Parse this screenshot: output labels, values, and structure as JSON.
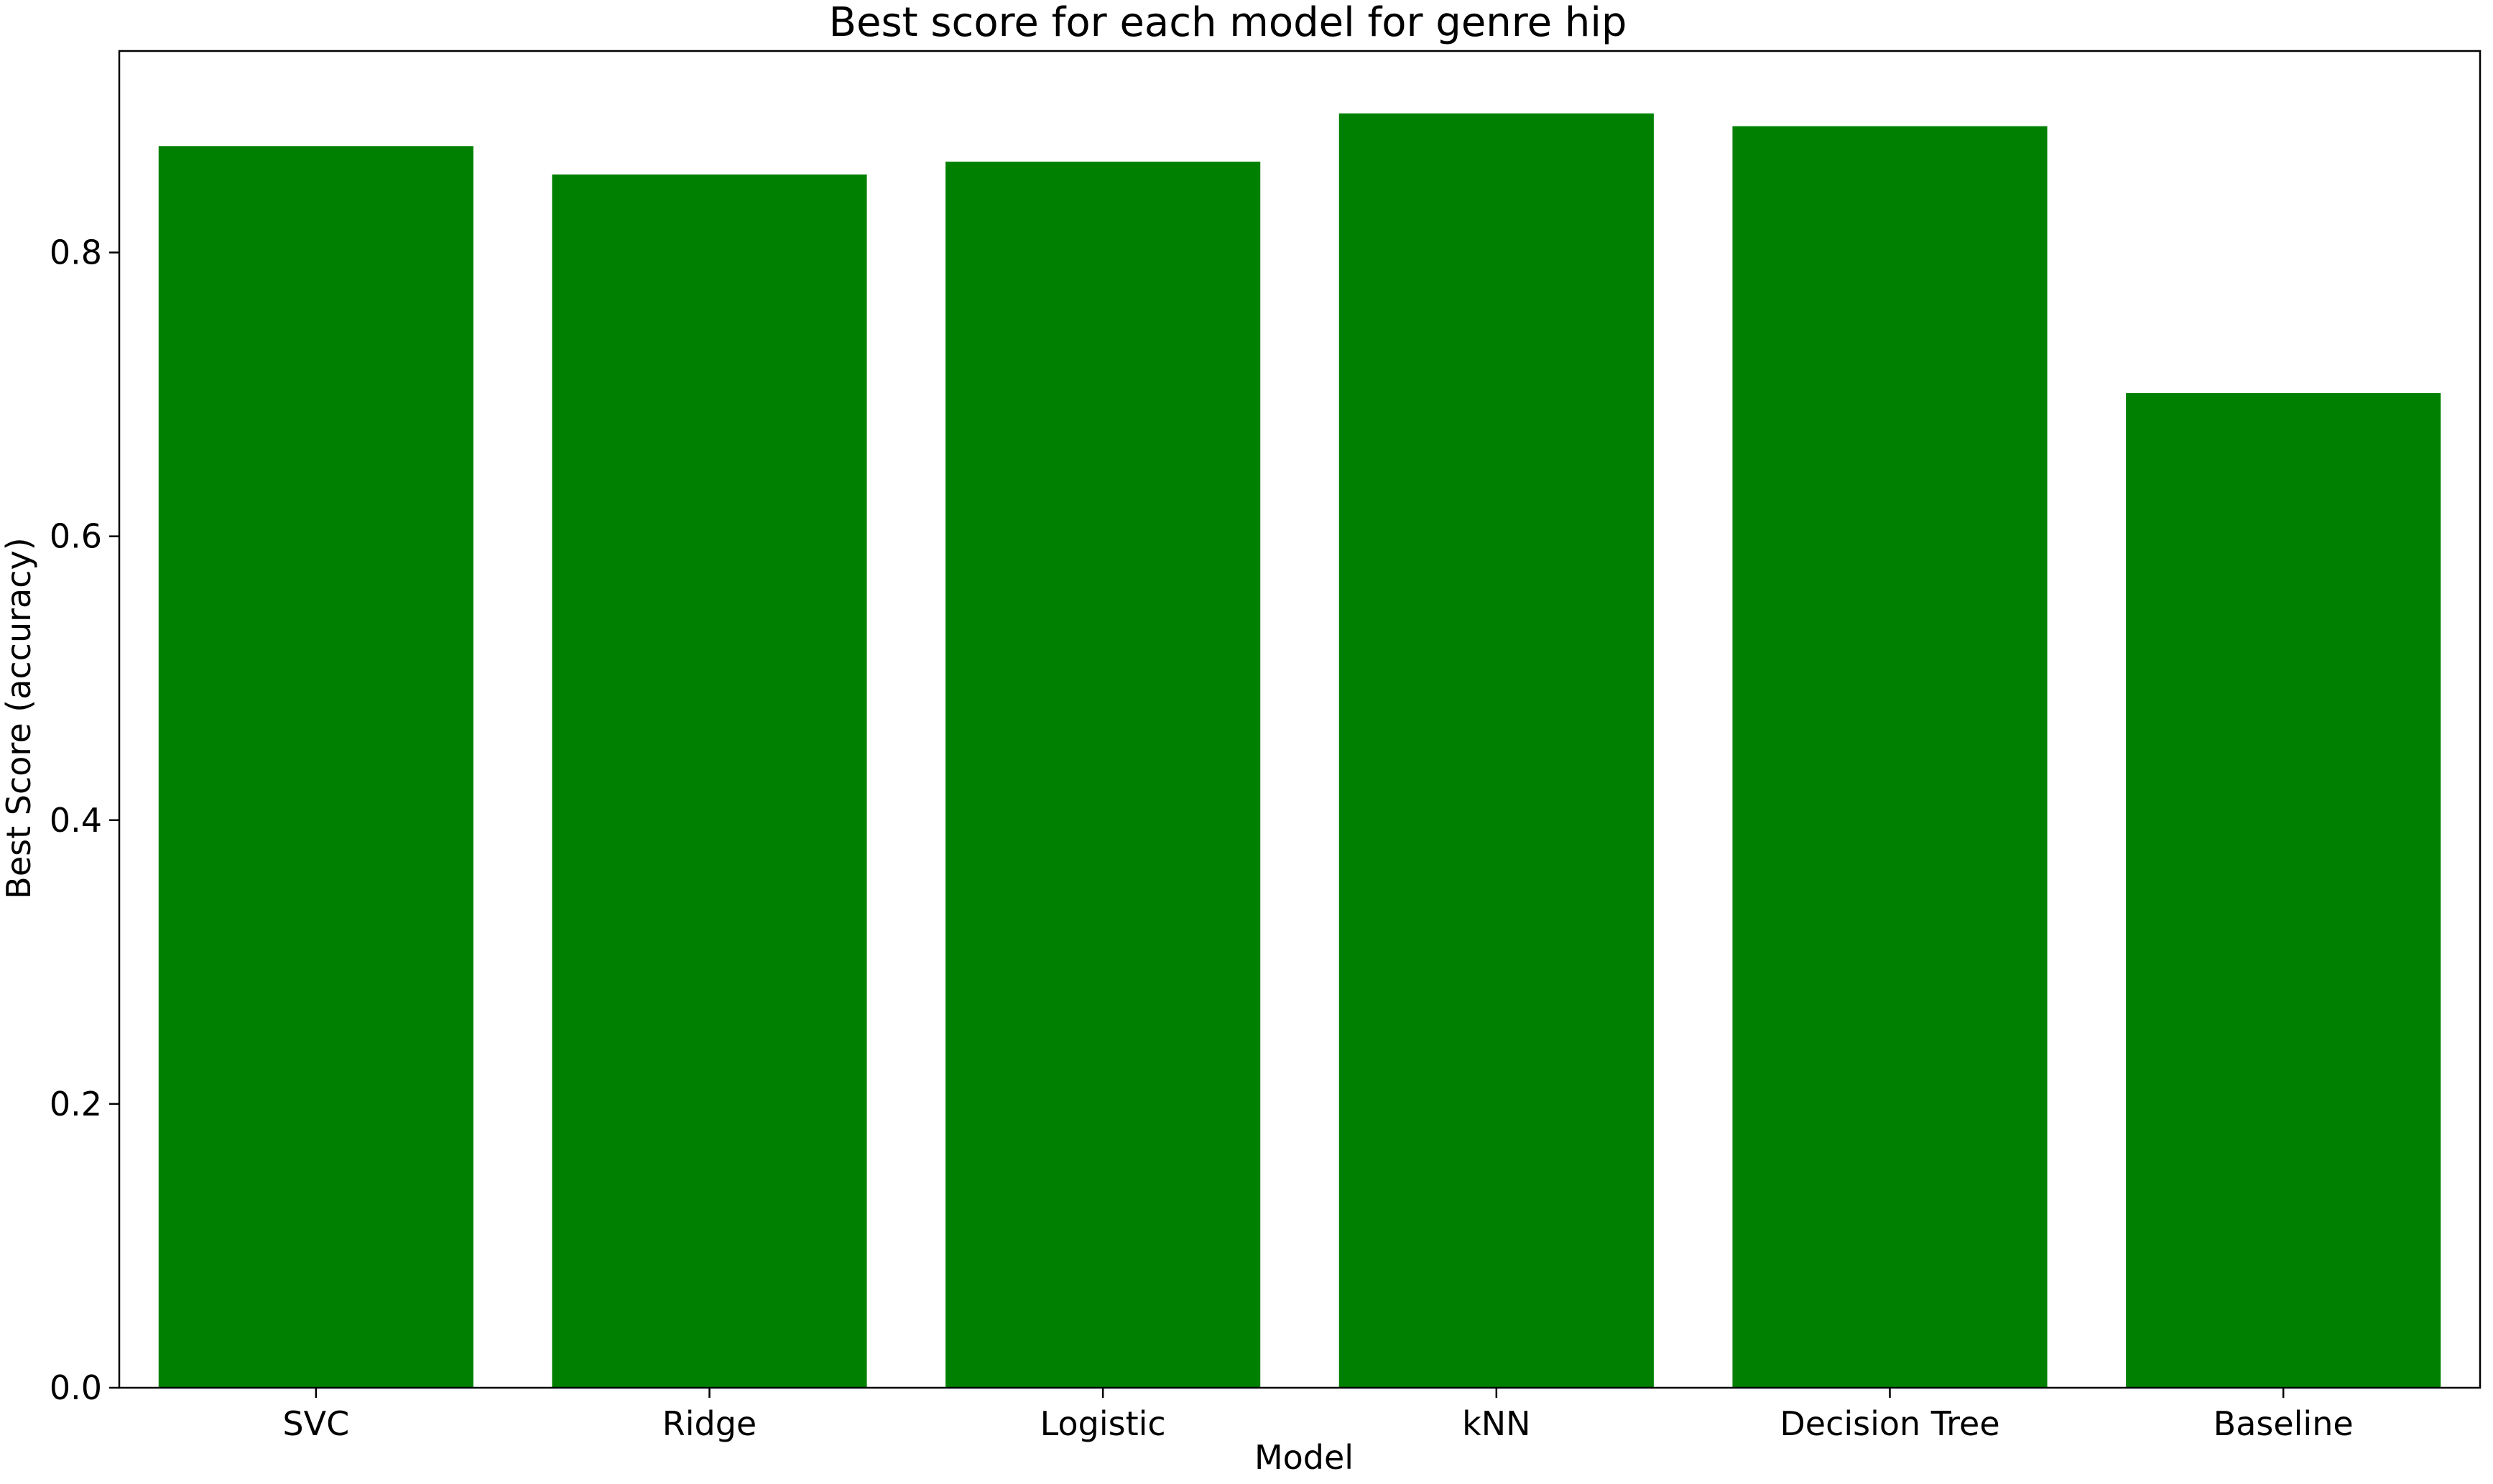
{
  "chart_data": {
    "type": "bar",
    "title": "Best score for each model for genre hip",
    "xlabel": "Model",
    "ylabel": "Best Score (accuracy)",
    "categories": [
      "SVC",
      "Ridge",
      "Logistic",
      "kNN",
      "Decision Tree",
      "Baseline"
    ],
    "values": [
      0.875,
      0.855,
      0.864,
      0.898,
      0.889,
      0.701
    ],
    "ylim": [
      0,
      0.942
    ],
    "yticks": [
      "0.0",
      "0.2",
      "0.4",
      "0.6",
      "0.8"
    ],
    "grid": false,
    "bar_color": "#008000"
  }
}
